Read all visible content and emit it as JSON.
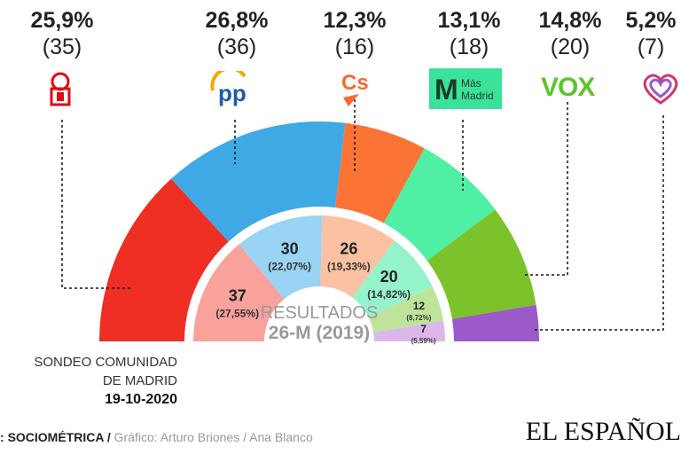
{
  "chart_data": {
    "type": "pie",
    "subtype": "parliament-semicircle",
    "outer_ring": {
      "description_label": "Sondeo",
      "series": [
        {
          "party": "PSOE",
          "percent": "25,9%",
          "seats": 35,
          "seats_label": "(35)",
          "color": "#ef2f24"
        },
        {
          "party": "PP",
          "percent": "26,8%",
          "seats": 36,
          "seats_label": "(36)",
          "color": "#3fa9e6"
        },
        {
          "party": "Cs",
          "percent": "12,3%",
          "seats": 16,
          "seats_label": "(16)",
          "color": "#fb7436"
        },
        {
          "party": "Más Madrid",
          "percent": "13,1%",
          "seats": 18,
          "seats_label": "(18)",
          "color": "#4ff0a4"
        },
        {
          "party": "VOX",
          "percent": "14,8%",
          "seats": 20,
          "seats_label": "(20)",
          "color": "#7bc22b"
        },
        {
          "party": "Podemos",
          "percent": "5,2%",
          "seats": 7,
          "seats_label": "(7)",
          "color": "#9b59c9"
        }
      ]
    },
    "inner_ring": {
      "series": [
        {
          "seats": 37,
          "label": "37",
          "percent": "(27,55%)",
          "color": "#f9a19b"
        },
        {
          "seats": 30,
          "label": "30",
          "percent": "(22,07%)",
          "color": "#99d4f4"
        },
        {
          "seats": 26,
          "label": "26",
          "percent": "(19,33%)",
          "color": "#fcc0a2"
        },
        {
          "seats": 20,
          "label": "20",
          "percent": "(14,82%)",
          "color": "#95f3cc"
        },
        {
          "seats": 12,
          "label": "12",
          "percent": "(8,72%)",
          "color": "#bde49a"
        },
        {
          "seats": 7,
          "label": "7",
          "percent": "(5,59%)",
          "color": "#dcb8ea"
        }
      ]
    },
    "center_label": {
      "line1": "RESULTADOS",
      "line2": "26-M (2019)"
    }
  },
  "logos": {
    "cs": "Cs",
    "masmadrid1": "Más",
    "masmadrid2": "Madrid",
    "vox": "VOX",
    "pp": "PP"
  },
  "note": {
    "line1": "SONDEO COMUNIDAD",
    "line2": "DE MADRID",
    "date": "19-10-2020"
  },
  "source": {
    "prefix": ": ",
    "source": "SOCIOMÉTRICA",
    "sep": " / ",
    "credits": "Gráfico: Arturo Briones / Ana Blanco"
  },
  "brand": "EL ESPAÑOL"
}
